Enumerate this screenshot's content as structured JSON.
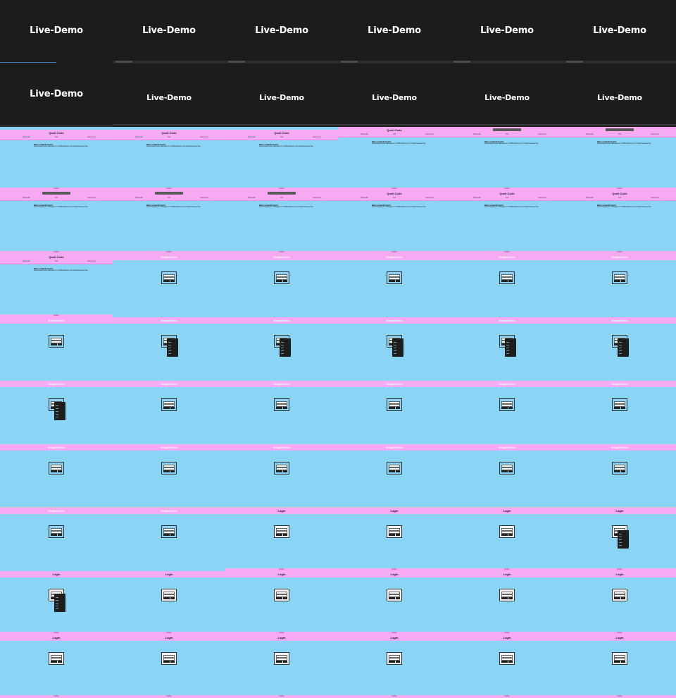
{
  "demo_title": "Live-Demo",
  "app": {
    "home_title": "Quell-Code",
    "nav": [
      "Startseite",
      "Info",
      "Impressum"
    ],
    "heading": "Was ist Quell-Code?",
    "body": "Quell-Code ist eine Webseite zur Veröffentlichung von Programmier-Lernen",
    "footer": "Footer",
    "login_title": "Login",
    "register_title": "Registrieren"
  },
  "colors": {
    "pink": "#f7aaf3",
    "blue": "#8ad4f6",
    "dark": "#1c1c1c"
  }
}
